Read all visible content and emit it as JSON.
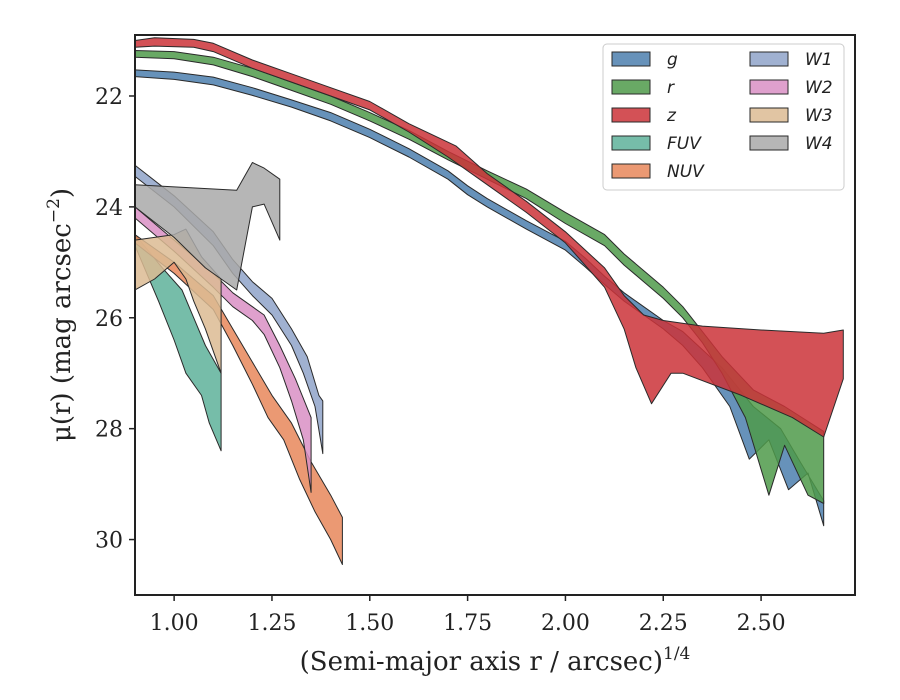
{
  "chart_data": {
    "type": "area",
    "xlabel": "(Semi-major axis r / arcsec)",
    "xlabel_exponent": "1/4",
    "ylabel": "μ(r) (mag arcsec",
    "ylabel_exponent": "−2",
    "ylabel_close": ")",
    "xlim": [
      0.9,
      2.74
    ],
    "ylim": [
      31.0,
      20.9
    ],
    "y_inverted": true,
    "xticks": [
      1.0,
      1.25,
      1.5,
      1.75,
      2.0,
      2.25,
      2.5
    ],
    "xtick_labels": [
      "1.00",
      "1.25",
      "1.50",
      "1.75",
      "2.00",
      "2.25",
      "2.50"
    ],
    "yticks": [
      22,
      24,
      26,
      28,
      30
    ],
    "ytick_labels": [
      "22",
      "24",
      "26",
      "28",
      "30"
    ],
    "grid": false,
    "legend_placement": "upper-right",
    "legend_columns": 2,
    "series": [
      {
        "name": "g",
        "color": "#4c7fae",
        "upper": [
          [
            0.9,
            21.53
          ],
          [
            1.0,
            21.57
          ],
          [
            1.1,
            21.66
          ],
          [
            1.2,
            21.85
          ],
          [
            1.3,
            22.07
          ],
          [
            1.4,
            22.3
          ],
          [
            1.5,
            22.6
          ],
          [
            1.6,
            22.95
          ],
          [
            1.7,
            23.35
          ],
          [
            1.75,
            23.62
          ],
          [
            1.8,
            23.85
          ],
          [
            1.9,
            24.25
          ],
          [
            2.0,
            24.62
          ],
          [
            2.05,
            24.92
          ],
          [
            2.1,
            25.25
          ],
          [
            2.15,
            25.55
          ],
          [
            2.2,
            25.8
          ],
          [
            2.25,
            26.05
          ],
          [
            2.3,
            26.25
          ],
          [
            2.4,
            26.9
          ],
          [
            2.48,
            27.6
          ],
          [
            2.55,
            28.0
          ],
          [
            2.6,
            28.6
          ],
          [
            2.66,
            29.3
          ]
        ],
        "lower": [
          [
            0.9,
            21.65
          ],
          [
            1.0,
            21.7
          ],
          [
            1.1,
            21.8
          ],
          [
            1.2,
            21.99
          ],
          [
            1.3,
            22.2
          ],
          [
            1.4,
            22.45
          ],
          [
            1.5,
            22.75
          ],
          [
            1.6,
            23.1
          ],
          [
            1.7,
            23.5
          ],
          [
            1.75,
            23.78
          ],
          [
            1.8,
            24.0
          ],
          [
            1.9,
            24.4
          ],
          [
            2.0,
            24.78
          ],
          [
            2.05,
            25.08
          ],
          [
            2.1,
            25.4
          ],
          [
            2.15,
            25.7
          ],
          [
            2.2,
            25.95
          ],
          [
            2.25,
            26.2
          ],
          [
            2.3,
            26.5
          ],
          [
            2.35,
            26.9
          ],
          [
            2.42,
            27.6
          ],
          [
            2.47,
            28.55
          ],
          [
            2.52,
            28.2
          ],
          [
            2.57,
            29.1
          ],
          [
            2.62,
            28.8
          ],
          [
            2.66,
            29.75
          ]
        ]
      },
      {
        "name": "r",
        "color": "#4f9a4a",
        "upper": [
          [
            0.9,
            21.18
          ],
          [
            1.0,
            21.2
          ],
          [
            1.1,
            21.3
          ],
          [
            1.2,
            21.5
          ],
          [
            1.3,
            21.75
          ],
          [
            1.4,
            22.0
          ],
          [
            1.5,
            22.3
          ],
          [
            1.6,
            22.62
          ],
          [
            1.7,
            23.0
          ],
          [
            1.8,
            23.35
          ],
          [
            1.9,
            23.68
          ],
          [
            2.0,
            24.1
          ],
          [
            2.1,
            24.5
          ],
          [
            2.15,
            24.85
          ],
          [
            2.2,
            25.15
          ],
          [
            2.25,
            25.45
          ],
          [
            2.3,
            25.8
          ],
          [
            2.35,
            26.25
          ],
          [
            2.4,
            26.7
          ],
          [
            2.48,
            27.3
          ],
          [
            2.56,
            27.6
          ],
          [
            2.66,
            28.05
          ]
        ],
        "lower": [
          [
            0.9,
            21.3
          ],
          [
            1.0,
            21.33
          ],
          [
            1.1,
            21.44
          ],
          [
            1.2,
            21.65
          ],
          [
            1.3,
            21.9
          ],
          [
            1.4,
            22.15
          ],
          [
            1.5,
            22.45
          ],
          [
            1.6,
            22.78
          ],
          [
            1.7,
            23.15
          ],
          [
            1.8,
            23.5
          ],
          [
            1.9,
            23.85
          ],
          [
            2.0,
            24.3
          ],
          [
            2.1,
            24.7
          ],
          [
            2.15,
            25.05
          ],
          [
            2.2,
            25.35
          ],
          [
            2.25,
            25.65
          ],
          [
            2.3,
            26.0
          ],
          [
            2.35,
            26.45
          ],
          [
            2.4,
            27.0
          ],
          [
            2.46,
            27.8
          ],
          [
            2.52,
            29.2
          ],
          [
            2.56,
            28.3
          ],
          [
            2.62,
            29.2
          ],
          [
            2.66,
            29.35
          ]
        ]
      },
      {
        "name": "z",
        "color": "#cb3238",
        "upper": [
          [
            0.9,
            21.0
          ],
          [
            0.95,
            20.95
          ],
          [
            1.05,
            20.98
          ],
          [
            1.1,
            21.05
          ],
          [
            1.2,
            21.35
          ],
          [
            1.3,
            21.6
          ],
          [
            1.4,
            21.85
          ],
          [
            1.5,
            22.1
          ],
          [
            1.6,
            22.5
          ],
          [
            1.72,
            22.9
          ],
          [
            1.8,
            23.4
          ],
          [
            1.9,
            23.9
          ],
          [
            2.0,
            24.45
          ],
          [
            2.1,
            25.1
          ],
          [
            2.15,
            25.6
          ],
          [
            2.2,
            25.95
          ],
          [
            2.25,
            26.05
          ],
          [
            2.35,
            26.15
          ],
          [
            2.5,
            26.22
          ],
          [
            2.66,
            26.28
          ],
          [
            2.71,
            26.22
          ],
          [
            2.71,
            27.1
          ]
        ],
        "lower": [
          [
            0.9,
            21.12
          ],
          [
            0.95,
            21.1
          ],
          [
            1.05,
            21.12
          ],
          [
            1.1,
            21.2
          ],
          [
            1.2,
            21.5
          ],
          [
            1.3,
            21.75
          ],
          [
            1.4,
            22.0
          ],
          [
            1.5,
            22.25
          ],
          [
            1.6,
            22.65
          ],
          [
            1.7,
            23.1
          ],
          [
            1.8,
            23.6
          ],
          [
            1.9,
            24.1
          ],
          [
            2.0,
            24.65
          ],
          [
            2.1,
            25.45
          ],
          [
            2.15,
            26.2
          ],
          [
            2.18,
            26.9
          ],
          [
            2.22,
            27.55
          ],
          [
            2.27,
            27.0
          ],
          [
            2.3,
            27.0
          ],
          [
            2.45,
            27.4
          ],
          [
            2.58,
            27.8
          ],
          [
            2.66,
            28.15
          ]
        ]
      },
      {
        "name": "FUV",
        "color": "#5eb29a",
        "upper": [
          [
            0.9,
            24.5
          ],
          [
            0.97,
            25.1
          ],
          [
            1.02,
            25.5
          ],
          [
            1.05,
            26.0
          ],
          [
            1.08,
            26.5
          ],
          [
            1.12,
            27.0
          ]
        ],
        "lower": [
          [
            0.9,
            24.7
          ],
          [
            0.96,
            25.7
          ],
          [
            1.0,
            26.4
          ],
          [
            1.03,
            27.0
          ],
          [
            1.07,
            27.4
          ],
          [
            1.09,
            27.9
          ],
          [
            1.12,
            28.4
          ]
        ]
      },
      {
        "name": "NUV",
        "color": "#e8875b",
        "upper": [
          [
            0.9,
            24.5
          ],
          [
            1.0,
            25.0
          ],
          [
            1.1,
            25.6
          ],
          [
            1.15,
            26.2
          ],
          [
            1.2,
            26.8
          ],
          [
            1.25,
            27.4
          ],
          [
            1.3,
            27.9
          ],
          [
            1.35,
            28.6
          ],
          [
            1.4,
            29.2
          ],
          [
            1.43,
            29.6
          ]
        ],
        "lower": [
          [
            0.9,
            24.65
          ],
          [
            1.0,
            25.2
          ],
          [
            1.1,
            25.85
          ],
          [
            1.15,
            26.5
          ],
          [
            1.2,
            27.2
          ],
          [
            1.24,
            27.8
          ],
          [
            1.28,
            28.2
          ],
          [
            1.32,
            28.9
          ],
          [
            1.36,
            29.5
          ],
          [
            1.4,
            30.0
          ],
          [
            1.43,
            30.45
          ]
        ]
      },
      {
        "name": "W1",
        "color": "#8fa3c9",
        "upper": [
          [
            0.9,
            23.25
          ],
          [
            1.0,
            23.8
          ],
          [
            1.1,
            24.45
          ],
          [
            1.15,
            24.95
          ],
          [
            1.2,
            25.35
          ],
          [
            1.25,
            25.65
          ],
          [
            1.3,
            26.2
          ],
          [
            1.34,
            26.7
          ],
          [
            1.37,
            27.4
          ],
          [
            1.38,
            27.5
          ]
        ],
        "lower": [
          [
            0.9,
            23.45
          ],
          [
            1.0,
            24.0
          ],
          [
            1.1,
            24.7
          ],
          [
            1.15,
            25.2
          ],
          [
            1.2,
            25.6
          ],
          [
            1.25,
            25.95
          ],
          [
            1.3,
            26.5
          ],
          [
            1.33,
            27.0
          ],
          [
            1.36,
            27.6
          ],
          [
            1.38,
            28.45
          ]
        ]
      },
      {
        "name": "W2",
        "color": "#d98fc4",
        "upper": [
          [
            0.9,
            24.0
          ],
          [
            1.0,
            24.6
          ],
          [
            1.1,
            25.2
          ],
          [
            1.15,
            25.55
          ],
          [
            1.2,
            25.8
          ],
          [
            1.23,
            25.95
          ],
          [
            1.27,
            26.5
          ],
          [
            1.31,
            27.1
          ],
          [
            1.35,
            27.8
          ]
        ],
        "lower": [
          [
            0.9,
            24.2
          ],
          [
            1.0,
            24.8
          ],
          [
            1.1,
            25.45
          ],
          [
            1.15,
            25.8
          ],
          [
            1.2,
            26.05
          ],
          [
            1.23,
            26.3
          ],
          [
            1.27,
            26.9
          ],
          [
            1.3,
            27.5
          ],
          [
            1.33,
            28.2
          ],
          [
            1.35,
            29.15
          ]
        ]
      },
      {
        "name": "W3",
        "color": "#dcbb93",
        "upper": [
          [
            0.9,
            24.6
          ],
          [
            1.0,
            24.5
          ],
          [
            1.03,
            24.4
          ],
          [
            1.07,
            24.9
          ],
          [
            1.12,
            25.3
          ]
        ],
        "lower": [
          [
            0.9,
            25.5
          ],
          [
            0.95,
            25.3
          ],
          [
            1.0,
            25.0
          ],
          [
            1.03,
            25.3
          ],
          [
            1.05,
            25.7
          ],
          [
            1.08,
            26.2
          ],
          [
            1.12,
            27.0
          ]
        ]
      },
      {
        "name": "W4",
        "color": "#a9a9a9",
        "upper": [
          [
            0.9,
            23.6
          ],
          [
            1.16,
            23.7
          ],
          [
            1.2,
            23.2
          ],
          [
            1.23,
            23.3
          ],
          [
            1.27,
            23.5
          ]
        ],
        "lower": [
          [
            0.9,
            24.0
          ],
          [
            1.0,
            24.55
          ],
          [
            1.08,
            25.1
          ],
          [
            1.16,
            25.5
          ],
          [
            1.2,
            24.0
          ],
          [
            1.23,
            23.95
          ],
          [
            1.27,
            24.6
          ]
        ]
      }
    ]
  }
}
